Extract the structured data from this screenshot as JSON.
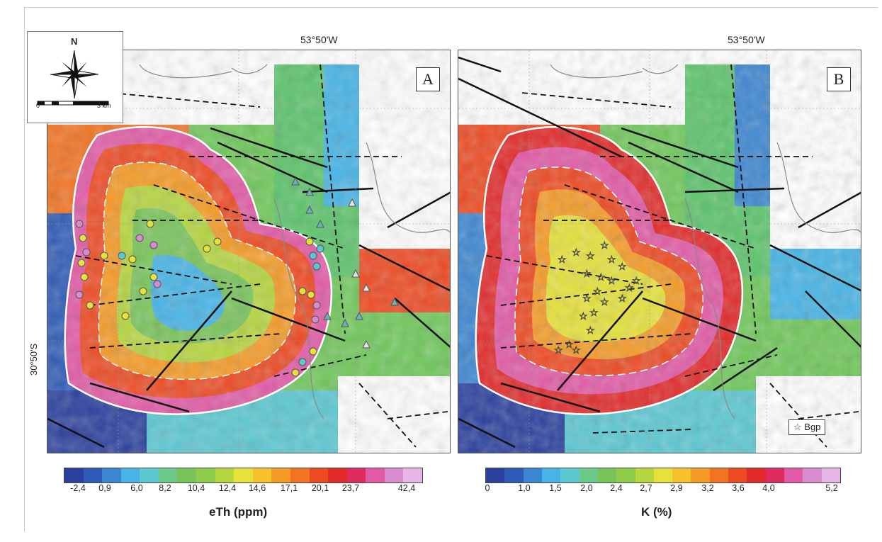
{
  "compass": {
    "north_label": "N",
    "scale_start": "0",
    "scale_end": "3 km"
  },
  "panel_a": {
    "letter": "A",
    "longitude_label": "53°50'W",
    "latitude_label": "30°50'S",
    "colorbar": {
      "title": "eTh (ppm)",
      "ticks": [
        "-2,4",
        "0,9",
        "6,0",
        "8,2",
        "10,4",
        "12,4",
        "14,6",
        "17,1",
        "20,1",
        "23,7",
        "42,4"
      ]
    }
  },
  "panel_b": {
    "letter": "B",
    "longitude_label": "53°50'W",
    "legend_label": "Bgp",
    "colorbar": {
      "title": "K (%)",
      "ticks": [
        "0",
        "1,0",
        "1,5",
        "2,0",
        "2,4",
        "2,7",
        "2,9",
        "3,2",
        "3,6",
        "4,0",
        "5,2"
      ]
    }
  },
  "colors": {
    "ramp": [
      "#2a3f9e",
      "#2e5bb8",
      "#3b86d2",
      "#46b4e6",
      "#5bc8d2",
      "#6bc98a",
      "#78c45a",
      "#8fcc4a",
      "#b6d640",
      "#e6e23a",
      "#f6c22e",
      "#f59b26",
      "#f27322",
      "#ee4a22",
      "#e22a2a",
      "#de2a5e",
      "#e25aa6",
      "#d88ccf",
      "#e6b6e6"
    ]
  }
}
